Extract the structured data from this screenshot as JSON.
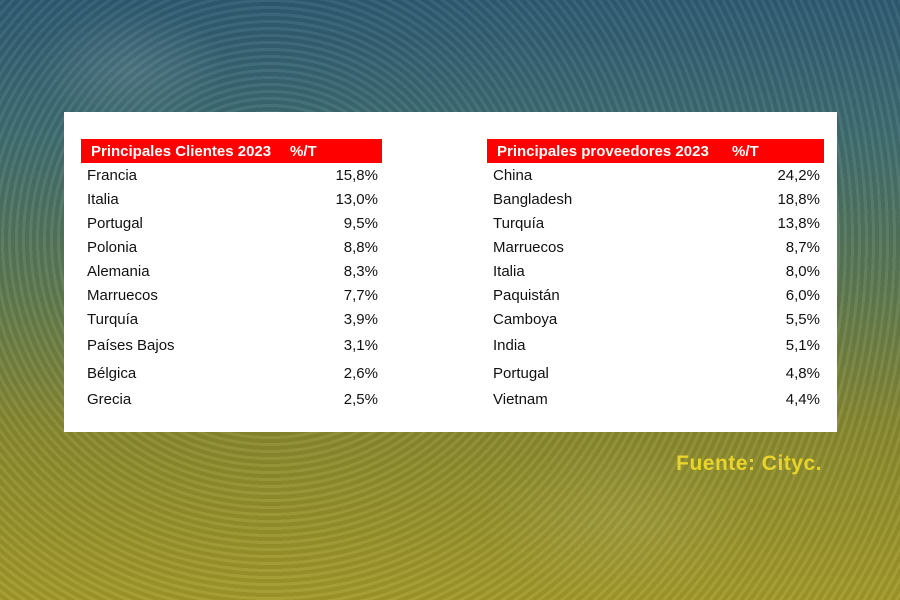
{
  "clients": {
    "header_label": "Principales Clientes 2023",
    "header_pct": "%/T",
    "rows": [
      {
        "country": "Francia",
        "pct": "15,8%"
      },
      {
        "country": "Italia",
        "pct": "13,0%"
      },
      {
        "country": "Portugal",
        "pct": "9,5%"
      },
      {
        "country": "Polonia",
        "pct": "8,8%"
      },
      {
        "country": "Alemania",
        "pct": "8,3%"
      },
      {
        "country": "Marruecos",
        "pct": "7,7%"
      },
      {
        "country": "Turquía",
        "pct": "3,9%"
      },
      {
        "country": "Países Bajos",
        "pct": "3,1%"
      },
      {
        "country": "Bélgica",
        "pct": "2,6%"
      },
      {
        "country": "Grecia",
        "pct": "2,5%"
      }
    ]
  },
  "suppliers": {
    "header_label": "Principales proveedores 2023",
    "header_pct": "%/T",
    "rows": [
      {
        "country": "China",
        "pct": "24,2%"
      },
      {
        "country": "Bangladesh",
        "pct": "18,8%"
      },
      {
        "country": "Turquía",
        "pct": "13,8%"
      },
      {
        "country": "Marruecos",
        "pct": "8,7%"
      },
      {
        "country": "Italia",
        "pct": "8,0%"
      },
      {
        "country": "Paquistán",
        "pct": "6,0%"
      },
      {
        "country": "Camboya",
        "pct": "5,5%"
      },
      {
        "country": "India",
        "pct": "5,1%"
      },
      {
        "country": "Portugal",
        "pct": "4,8%"
      },
      {
        "country": "Vietnam",
        "pct": "4,4%"
      }
    ]
  },
  "source": "Fuente: Cityc.",
  "colors": {
    "header_bg": "#ff0000",
    "source_text": "#e8d42a"
  }
}
